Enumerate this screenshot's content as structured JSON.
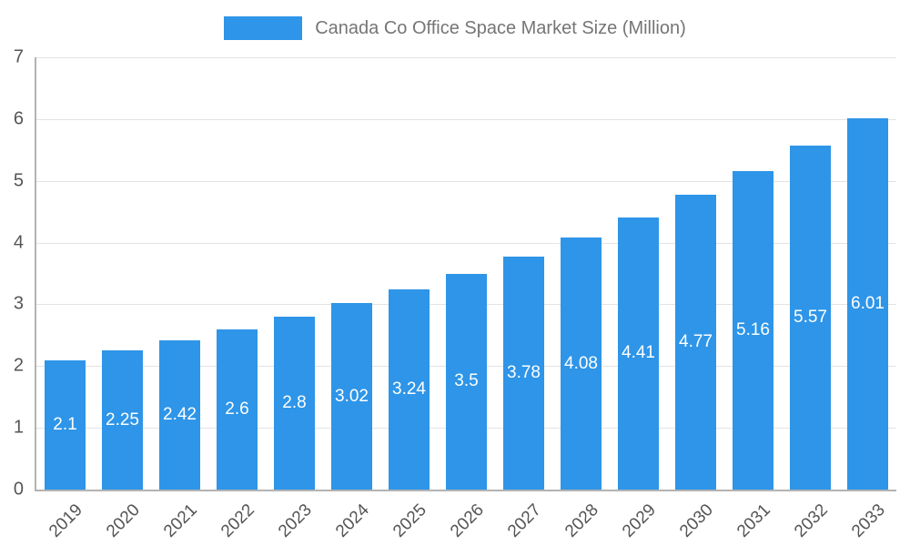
{
  "chart_data": {
    "type": "bar",
    "title": "Canada Co Office Space Market Size (Million)",
    "categories": [
      "2019",
      "2020",
      "2021",
      "2022",
      "2023",
      "2024",
      "2025",
      "2026",
      "2027",
      "2028",
      "2029",
      "2030",
      "2031",
      "2032",
      "2033"
    ],
    "values": [
      2.1,
      2.25,
      2.42,
      2.6,
      2.8,
      3.02,
      3.24,
      3.5,
      3.78,
      4.08,
      4.41,
      4.77,
      5.16,
      5.57,
      6.01
    ],
    "xlabel": "",
    "ylabel": "",
    "ylim": [
      0,
      7
    ],
    "yticks": [
      0,
      1,
      2,
      3,
      4,
      5,
      6,
      7
    ],
    "grid": true,
    "legend_position": "top",
    "bar_color": "#2e95e8",
    "value_label_color": "#ffffff"
  }
}
